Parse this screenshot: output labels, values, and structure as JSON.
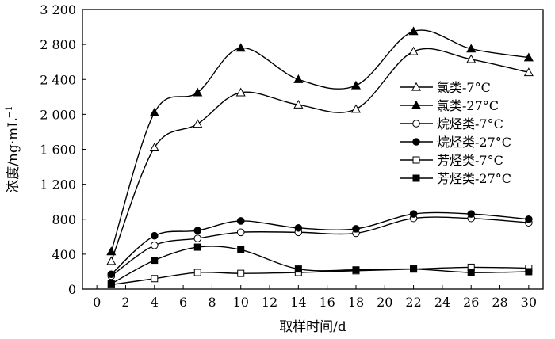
{
  "chart_data": {
    "type": "line",
    "xlabel": "取样时间/d",
    "ylabel": "浓度/ng·mL",
    "ylabel_sup": "−1",
    "xlim": [
      -1,
      31
    ],
    "ylim": [
      0,
      3200
    ],
    "xticks": [
      0,
      2,
      4,
      6,
      8,
      10,
      12,
      14,
      16,
      18,
      20,
      22,
      24,
      26,
      28,
      30
    ],
    "yticks": [
      0,
      400,
      800,
      1200,
      1600,
      2000,
      2400,
      2800,
      3200
    ],
    "ytick_labels": [
      "0",
      "400",
      "800",
      "1 200",
      "1 600",
      "2 000",
      "2 400",
      "2 800",
      "3 200"
    ],
    "x": [
      1,
      4,
      7,
      10,
      14,
      18,
      22,
      26,
      30
    ],
    "legend_position": "right",
    "series": [
      {
        "name": "氯类-7°C",
        "marker": "triangle",
        "filled": false,
        "values": [
          320,
          1620,
          1890,
          2250,
          2110,
          2060,
          2720,
          2630,
          2480
        ]
      },
      {
        "name": "氯类-27°C",
        "marker": "triangle",
        "filled": true,
        "values": [
          430,
          2020,
          2250,
          2760,
          2400,
          2330,
          2950,
          2750,
          2650
        ]
      },
      {
        "name": "烷烃类-7°C",
        "marker": "circle",
        "filled": false,
        "values": [
          150,
          500,
          580,
          650,
          650,
          640,
          810,
          810,
          760
        ]
      },
      {
        "name": "烷烃类-27°C",
        "marker": "circle",
        "filled": true,
        "values": [
          170,
          610,
          670,
          780,
          700,
          690,
          860,
          860,
          800
        ]
      },
      {
        "name": "芳烃类-7°C",
        "marker": "square",
        "filled": false,
        "values": [
          50,
          120,
          190,
          180,
          190,
          210,
          230,
          250,
          240
        ]
      },
      {
        "name": "芳烃类-27°C",
        "marker": "square",
        "filled": true,
        "values": [
          60,
          330,
          480,
          450,
          230,
          220,
          230,
          190,
          200
        ]
      }
    ]
  }
}
